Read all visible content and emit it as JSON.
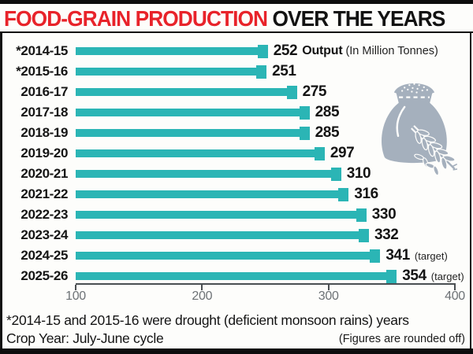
{
  "header": {
    "title_red": "FOOD-GRAIN PRODUCTION ",
    "title_black": "OVER THE YEARS"
  },
  "legend": {
    "output_label": "Output",
    "unit_label": "(In Million Tonnes)"
  },
  "chart_data": {
    "type": "bar",
    "orientation": "horizontal",
    "title": "FOOD-GRAIN PRODUCTION OVER THE YEARS",
    "unit": "In Million Tonnes",
    "categories": [
      "*2014-15",
      "*2015-16",
      "2016-17",
      "2017-18",
      "2018-19",
      "2019-20",
      "2020-21",
      "2021-22",
      "2022-23",
      "2023-24",
      "2024-25",
      "2025-26"
    ],
    "values": [
      252,
      251,
      275,
      285,
      285,
      297,
      310,
      316,
      330,
      332,
      341,
      354
    ],
    "value_notes": [
      "",
      "",
      "",
      "",
      "",
      "",
      "",
      "",
      "",
      "",
      "(target)",
      "(target)"
    ],
    "xlim": [
      100,
      400
    ],
    "x_ticks": [
      100,
      200,
      300,
      400
    ],
    "bar_color": "#2bb5b5",
    "grid": false,
    "legend_position": "top-right"
  },
  "footnotes": {
    "drought_note": "*2014-15 and 2015-16 were drought (deficient monsoon rains) years",
    "crop_year": "Crop Year: July-June cycle",
    "rounded_note": "(Figures are rounded off)"
  },
  "icons": {
    "grain_sack": "grain-sack-icon"
  },
  "colors": {
    "bar_teal": "#2bb5b5",
    "title_red": "#e8232a",
    "text_black": "#141414",
    "axis_gray": "#4a4f52",
    "tick_label_gray": "#6d7276",
    "sack_gray": "#a5b0bd",
    "frame_black": "#0d0d0d"
  }
}
